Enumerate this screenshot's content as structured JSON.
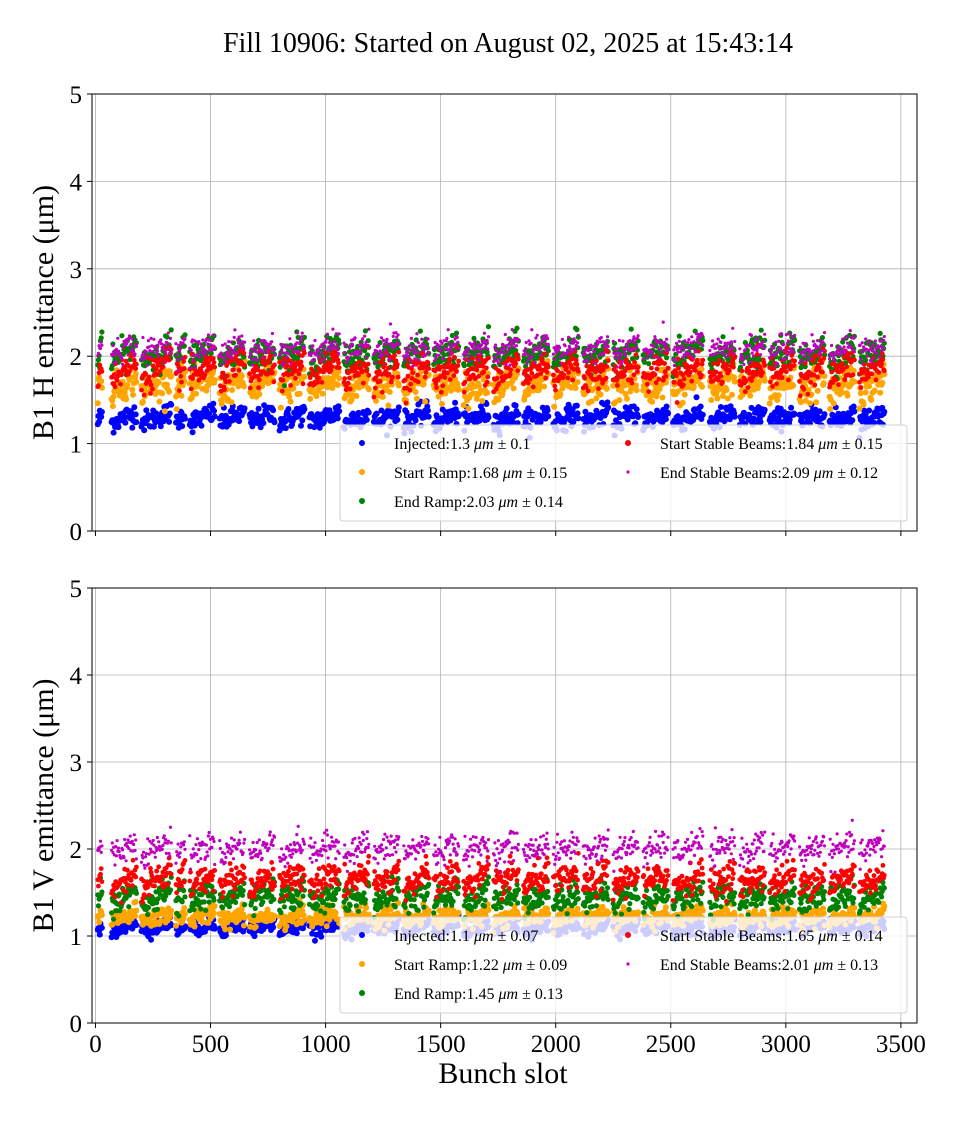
{
  "chart_data": {
    "title": "Fill 10906: Started on August 02, 2025 at 15:43:14",
    "type": "scatter",
    "xlabel": "Bunch slot",
    "xlim": [
      -15,
      3570
    ],
    "xticks": [
      "0",
      "500",
      "1000",
      "1500",
      "2000",
      "2500",
      "3000",
      "3500"
    ],
    "xtick_values": [
      0,
      500,
      1000,
      1500,
      2000,
      2500,
      3000,
      3500
    ],
    "grid": true,
    "trains": [
      [
        10,
        30
      ],
      [
        70,
        180
      ],
      [
        200,
        330
      ],
      [
        350,
        390
      ],
      [
        410,
        520
      ],
      [
        540,
        650
      ],
      [
        670,
        780
      ],
      [
        800,
        910
      ],
      [
        930,
        1060
      ],
      [
        1080,
        1190
      ],
      [
        1210,
        1320
      ],
      [
        1340,
        1450
      ],
      [
        1470,
        1580
      ],
      [
        1600,
        1710
      ],
      [
        1730,
        1840
      ],
      [
        1860,
        1970
      ],
      [
        1990,
        2100
      ],
      [
        2120,
        2230
      ],
      [
        2250,
        2360
      ],
      [
        2380,
        2490
      ],
      [
        2510,
        2640
      ],
      [
        2670,
        2780
      ],
      [
        2800,
        2910
      ],
      [
        2930,
        3040
      ],
      [
        3060,
        3170
      ],
      [
        3190,
        3300
      ],
      [
        3320,
        3430
      ]
    ],
    "plots": [
      {
        "ylabel": "B1 H emittance (μm)",
        "ylim": [
          0,
          5
        ],
        "yticks": [
          "0",
          "1",
          "2",
          "3",
          "4",
          "5"
        ],
        "legend_position": "lower right",
        "series": [
          {
            "label": "Injected:1.3 ",
            "unit": "μm",
            "pm": " ± 0.1",
            "mean": 1.3,
            "std": 0.1,
            "color": "#0000ff"
          },
          {
            "label": "Start Ramp:1.68 ",
            "unit": "μm",
            "pm": " ± 0.15",
            "mean": 1.68,
            "std": 0.15,
            "color": "#ffa500"
          },
          {
            "label": "End Ramp:2.03 ",
            "unit": "μm",
            "pm": " ± 0.14",
            "mean": 2.03,
            "std": 0.14,
            "color": "#008000"
          },
          {
            "label": "Start Stable Beams:1.84 ",
            "unit": "μm",
            "pm": " ± 0.15",
            "mean": 1.84,
            "std": 0.15,
            "color": "#ff0000"
          },
          {
            "label": "End Stable Beams:2.09 ",
            "unit": "μm",
            "pm": " ± 0.12",
            "mean": 2.09,
            "std": 0.12,
            "color": "#bf00bf"
          }
        ]
      },
      {
        "ylabel": "B1 V emittance (μm)",
        "ylim": [
          0,
          5
        ],
        "yticks": [
          "0",
          "1",
          "2",
          "3",
          "4",
          "5"
        ],
        "legend_position": "lower right",
        "series": [
          {
            "label": "Injected:1.1 ",
            "unit": "μm",
            "pm": " ± 0.07",
            "mean": 1.1,
            "std": 0.07,
            "color": "#0000ff"
          },
          {
            "label": "Start Ramp:1.22 ",
            "unit": "μm",
            "pm": " ± 0.09",
            "mean": 1.22,
            "std": 0.09,
            "color": "#ffa500"
          },
          {
            "label": "End Ramp:1.45 ",
            "unit": "μm",
            "pm": " ± 0.13",
            "mean": 1.45,
            "std": 0.13,
            "color": "#008000"
          },
          {
            "label": "Start Stable Beams:1.65 ",
            "unit": "μm",
            "pm": " ± 0.14",
            "mean": 1.65,
            "std": 0.14,
            "color": "#ff0000"
          },
          {
            "label": "End Stable Beams:2.01 ",
            "unit": "μm",
            "pm": " ± 0.13",
            "mean": 2.01,
            "std": 0.13,
            "color": "#bf00bf"
          }
        ]
      }
    ]
  }
}
